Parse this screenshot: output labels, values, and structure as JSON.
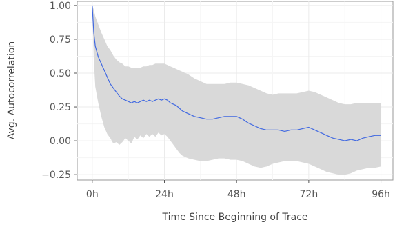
{
  "chart_data": {
    "type": "line",
    "title": "",
    "xlabel": "Time Since Beginning of Trace",
    "ylabel": "Avg. Autocorrelation",
    "xlim": [
      -5,
      100
    ],
    "ylim": [
      -0.29,
      1.03
    ],
    "xticks": [
      0,
      24,
      48,
      72,
      96
    ],
    "xtick_labels": [
      "0h",
      "24h",
      "48h",
      "72h",
      "96h"
    ],
    "yticks": [
      -0.25,
      0,
      0.25,
      0.5,
      0.75,
      1.0
    ],
    "ytick_labels": [
      "−0.25",
      "0.00",
      "0.25",
      "0.50",
      "0.75",
      "1.00"
    ],
    "grid": true,
    "legend": "none",
    "line_color": "#4169e1",
    "band_color": "#d9d9d9",
    "series": [
      {
        "x": [
          0,
          0.5,
          1,
          2,
          3,
          4,
          5,
          6,
          7,
          8,
          9,
          10,
          11,
          12,
          13,
          14,
          15,
          16,
          17,
          18,
          19,
          20,
          21,
          22,
          23,
          24,
          25,
          26,
          27,
          28,
          29,
          30,
          32,
          34,
          36,
          38,
          40,
          42,
          44,
          46,
          48,
          50,
          52,
          54,
          56,
          58,
          60,
          62,
          64,
          66,
          68,
          70,
          72,
          74,
          76,
          78,
          80,
          82,
          84,
          86,
          88,
          90,
          92,
          94,
          96
        ],
        "y": [
          1.0,
          0.8,
          0.7,
          0.62,
          0.57,
          0.52,
          0.47,
          0.42,
          0.39,
          0.36,
          0.33,
          0.31,
          0.3,
          0.29,
          0.28,
          0.29,
          0.28,
          0.29,
          0.3,
          0.29,
          0.3,
          0.29,
          0.3,
          0.31,
          0.3,
          0.31,
          0.3,
          0.28,
          0.27,
          0.26,
          0.24,
          0.22,
          0.2,
          0.18,
          0.17,
          0.16,
          0.16,
          0.17,
          0.18,
          0.18,
          0.18,
          0.16,
          0.13,
          0.11,
          0.09,
          0.08,
          0.08,
          0.08,
          0.07,
          0.08,
          0.08,
          0.09,
          0.1,
          0.08,
          0.06,
          0.04,
          0.02,
          0.01,
          0.0,
          0.01,
          0.0,
          0.02,
          0.03,
          0.04,
          0.04
        ],
        "lower": [
          1.0,
          0.6,
          0.4,
          0.28,
          0.18,
          0.1,
          0.05,
          0.02,
          -0.02,
          -0.01,
          -0.03,
          -0.01,
          0.02,
          0.0,
          -0.02,
          0.03,
          0.01,
          0.04,
          0.02,
          0.05,
          0.03,
          0.05,
          0.03,
          0.06,
          0.04,
          0.05,
          0.03,
          0.0,
          -0.03,
          -0.06,
          -0.09,
          -0.11,
          -0.13,
          -0.14,
          -0.15,
          -0.15,
          -0.14,
          -0.13,
          -0.13,
          -0.14,
          -0.14,
          -0.15,
          -0.17,
          -0.19,
          -0.2,
          -0.19,
          -0.17,
          -0.16,
          -0.15,
          -0.15,
          -0.15,
          -0.16,
          -0.17,
          -0.19,
          -0.21,
          -0.23,
          -0.24,
          -0.25,
          -0.25,
          -0.24,
          -0.22,
          -0.21,
          -0.2,
          -0.2,
          -0.19
        ],
        "upper": [
          1.0,
          0.97,
          0.92,
          0.86,
          0.8,
          0.75,
          0.7,
          0.67,
          0.63,
          0.6,
          0.58,
          0.57,
          0.55,
          0.55,
          0.54,
          0.54,
          0.54,
          0.54,
          0.55,
          0.55,
          0.56,
          0.56,
          0.57,
          0.57,
          0.57,
          0.57,
          0.56,
          0.55,
          0.54,
          0.53,
          0.52,
          0.51,
          0.49,
          0.46,
          0.44,
          0.42,
          0.42,
          0.42,
          0.42,
          0.43,
          0.43,
          0.42,
          0.41,
          0.39,
          0.37,
          0.35,
          0.34,
          0.35,
          0.35,
          0.35,
          0.35,
          0.36,
          0.37,
          0.36,
          0.34,
          0.32,
          0.3,
          0.28,
          0.27,
          0.27,
          0.28,
          0.28,
          0.28,
          0.28,
          0.28
        ]
      }
    ]
  }
}
